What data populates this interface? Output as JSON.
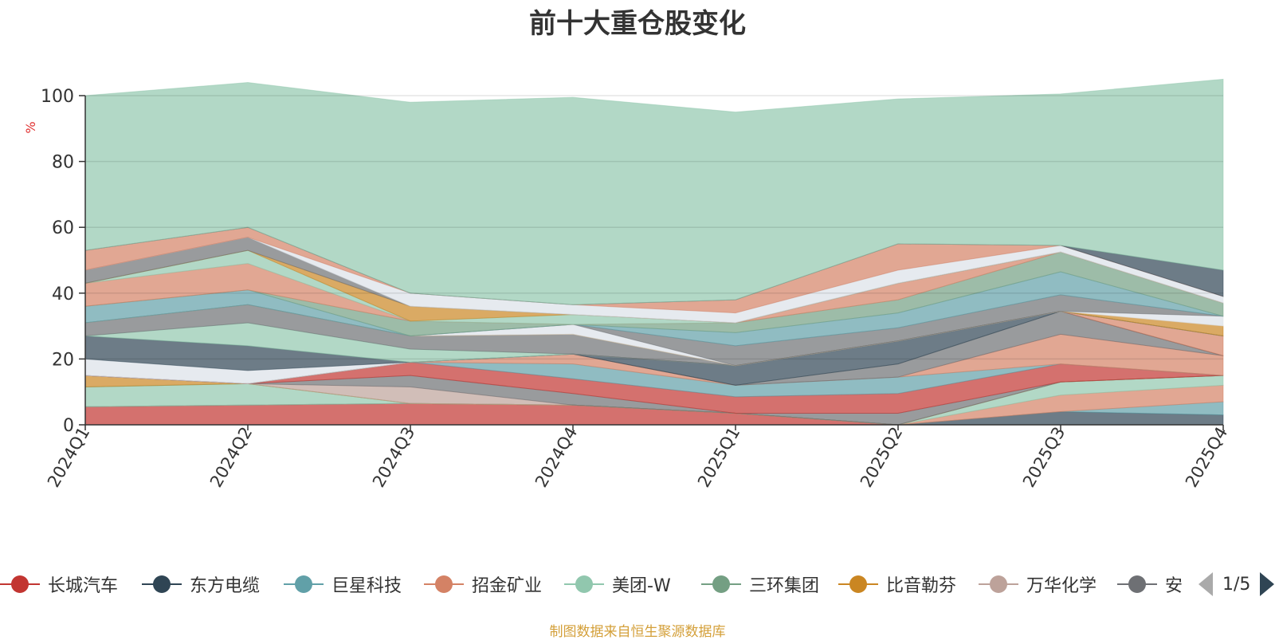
{
  "chart_data": {
    "type": "area",
    "title": "前十大重仓股变化",
    "ylabel": "%",
    "ylim": [
      0,
      100
    ],
    "yticks": [
      "0",
      "20",
      "40",
      "60",
      "80",
      "100"
    ],
    "categories": [
      "2024Q1",
      "2024Q2",
      "2024Q3",
      "2024Q4",
      "2025Q1",
      "2025Q2",
      "2025Q3",
      "2025Q4"
    ],
    "stacked": true,
    "grid": true,
    "legend_position": "bottom",
    "series": [
      {
        "name": "长城汽车",
        "color": "#c23531",
        "values": [
          5.5,
          6.0,
          6.5,
          6.0,
          3.5,
          0,
          0,
          0
        ]
      },
      {
        "name": "东方电缆",
        "color": "#2f4554",
        "values": [
          0,
          0,
          0,
          0,
          0,
          0,
          4.0,
          3.0
        ]
      },
      {
        "name": "巨星科技",
        "color": "#61a0a8",
        "values": [
          0,
          0,
          0,
          0,
          0,
          0,
          0,
          4.0
        ]
      },
      {
        "name": "招金矿业",
        "color": "#d48265",
        "values": [
          0,
          0,
          0,
          0,
          0,
          0,
          5.0,
          5.0
        ]
      },
      {
        "name": "美团-W",
        "color": "#91c7ae",
        "values": [
          6.0,
          6.5,
          0,
          0,
          0,
          0,
          4.0,
          3.0
        ]
      },
      {
        "name": "三环集团",
        "color": "#749f83",
        "values": [
          0,
          0,
          0,
          0,
          0,
          0,
          0,
          0
        ]
      },
      {
        "name": "比音勒芬",
        "color": "#ca8622",
        "values": [
          3.5,
          0,
          0,
          0,
          0,
          0,
          0,
          0
        ]
      },
      {
        "name": "万华化学",
        "color": "#bda29a",
        "values": [
          0,
          0,
          5.0,
          0,
          0,
          0,
          0,
          0
        ]
      },
      {
        "name": "安",
        "color": "#6e7074",
        "values": [
          0,
          0,
          3.5,
          3.5,
          0,
          3.5,
          0,
          0
        ]
      },
      {
        "name": "",
        "color": "#c23531",
        "values": [
          0,
          0,
          4.0,
          4.5,
          5.0,
          6.0,
          5.5,
          0
        ]
      },
      {
        "name": "",
        "color": "#61a0a8",
        "values": [
          0,
          0,
          0,
          4.5,
          3.5,
          5.0,
          0,
          0
        ]
      },
      {
        "name": "",
        "color": "#d48265",
        "values": [
          0,
          0,
          0,
          3.0,
          0,
          0,
          9.0,
          6.0
        ]
      },
      {
        "name": "",
        "color": "#6e7074",
        "values": [
          0,
          0,
          0,
          0,
          0,
          4.0,
          7.0,
          0
        ]
      },
      {
        "name": "",
        "color": "#2f4554",
        "values": [
          0,
          0,
          0,
          0,
          6.0,
          7.0,
          0,
          0
        ]
      },
      {
        "name": "",
        "color": "#d48265",
        "values": [
          0,
          0,
          0,
          0,
          0,
          0,
          0,
          6.0
        ]
      },
      {
        "name": "",
        "color": "#dce1e8",
        "values": [
          5.0,
          4.0,
          0,
          0,
          0,
          0,
          0,
          0
        ]
      },
      {
        "name": "",
        "color": "#2f4554",
        "values": [
          7.0,
          7.5,
          0,
          0,
          0,
          0,
          0,
          0
        ]
      },
      {
        "name": "",
        "color": "#91c7ae",
        "values": [
          0,
          7.0,
          4.0,
          0,
          0,
          0,
          0,
          0
        ]
      },
      {
        "name": "",
        "color": "#6e7074",
        "values": [
          4.0,
          5.5,
          4.0,
          6.0,
          0,
          0,
          0,
          0
        ]
      },
      {
        "name": "",
        "color": "#ca8622",
        "values": [
          0,
          0,
          0,
          0,
          0,
          0,
          0,
          3.0
        ]
      },
      {
        "name": "",
        "color": "#dce1e8",
        "values": [
          0,
          0,
          0,
          3.0,
          0,
          0,
          0,
          3.0
        ]
      },
      {
        "name": "",
        "color": "#6e7074",
        "values": [
          0,
          0,
          0,
          0,
          6.0,
          4.0,
          5.0,
          0
        ]
      },
      {
        "name": "",
        "color": "#61a0a8",
        "values": [
          5.0,
          4.5,
          0,
          0,
          4.0,
          4.5,
          7.0,
          0
        ]
      },
      {
        "name": "",
        "color": "#749f83",
        "values": [
          0,
          0,
          4.5,
          0,
          3.0,
          4.0,
          6.0,
          4.0
        ]
      },
      {
        "name": "",
        "color": "#d48265",
        "values": [
          7.0,
          8.0,
          0,
          0,
          0,
          5.0,
          0,
          0
        ]
      },
      {
        "name": "",
        "color": "#91c7ae",
        "values": [
          0,
          4.0,
          0,
          3.0,
          0,
          0,
          0,
          0
        ]
      },
      {
        "name": "",
        "color": "#ca8622",
        "values": [
          0,
          0,
          4.5,
          0,
          0,
          0,
          0,
          0
        ]
      },
      {
        "name": "",
        "color": "#6e7074",
        "values": [
          4.0,
          4.0,
          0,
          0,
          0,
          0,
          0,
          0
        ]
      },
      {
        "name": "",
        "color": "#dce1e8",
        "values": [
          0,
          0,
          4.0,
          3.0,
          3.0,
          4.0,
          2.0,
          2.0
        ]
      },
      {
        "name": "",
        "color": "#d48265",
        "values": [
          6.0,
          3.0,
          0,
          0,
          4.0,
          8.0,
          0,
          0
        ]
      },
      {
        "name": "",
        "color": "#2f4554",
        "values": [
          0,
          0,
          0,
          0,
          0,
          0,
          0,
          8.0
        ]
      },
      {
        "name": "",
        "color": "#91c7ae",
        "values": [
          47.0,
          44.0,
          58.0,
          63.0,
          57.0,
          44.0,
          46.0,
          58.0
        ]
      }
    ]
  },
  "legend": {
    "items": [
      {
        "label": "长城汽车",
        "color": "#c23531"
      },
      {
        "label": "东方电缆",
        "color": "#2f4554"
      },
      {
        "label": "巨星科技",
        "color": "#61a0a8"
      },
      {
        "label": "招金矿业",
        "color": "#d48265"
      },
      {
        "label": "美团-W",
        "color": "#91c7ae"
      },
      {
        "label": "三环集团",
        "color": "#749f83"
      },
      {
        "label": "比音勒芬",
        "color": "#ca8622"
      },
      {
        "label": "万华化学",
        "color": "#bda29a"
      },
      {
        "label": "安",
        "color": "#6e7074"
      }
    ],
    "pager": {
      "text": "1/5"
    }
  },
  "footer": {
    "source": "制图数据来自恒生聚源数据库"
  }
}
